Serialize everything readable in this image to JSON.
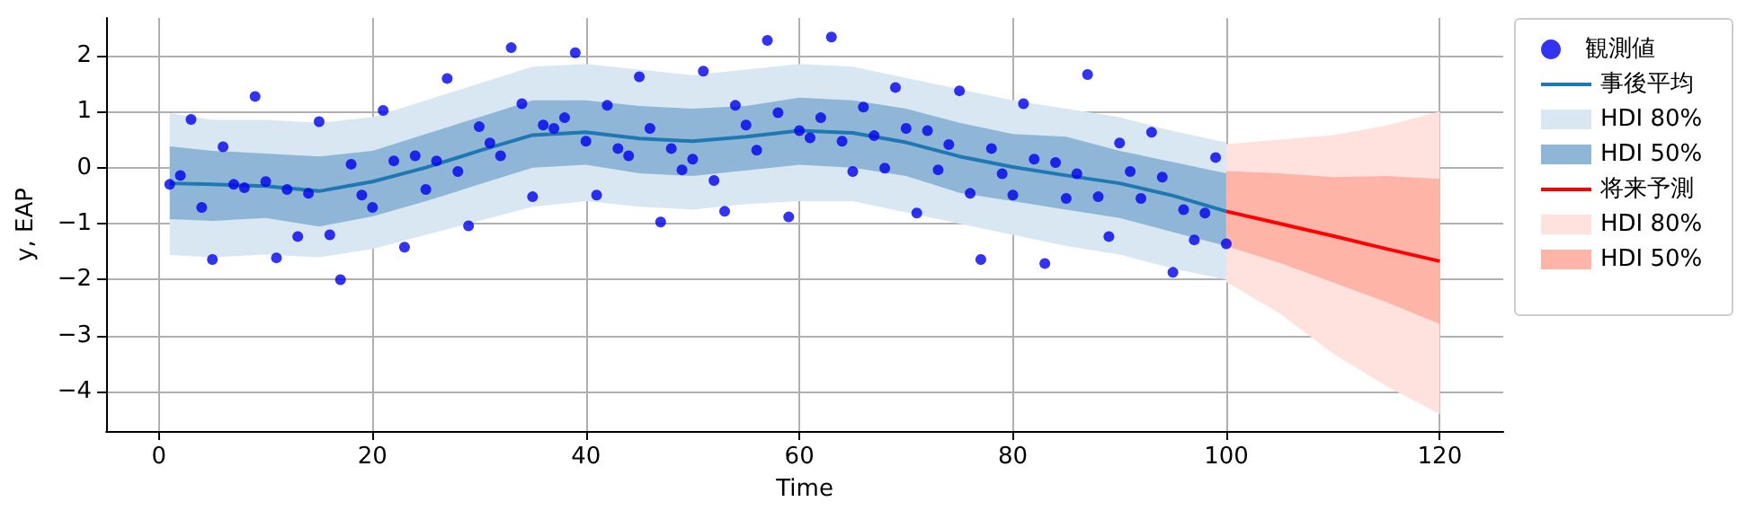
{
  "chart_data": {
    "type": "line",
    "xlabel": "Time",
    "ylabel": "y, EAP",
    "xlim": [
      -4.95,
      125.95
    ],
    "ylim": [
      -4.7,
      2.67
    ],
    "xticks": [
      0,
      20,
      40,
      60,
      80,
      100,
      120
    ],
    "yticks": [
      -4,
      -3,
      -2,
      -1,
      0,
      1,
      2
    ],
    "grid": true,
    "legend": "right",
    "series": [
      {
        "type": "scatter",
        "name": "観測値",
        "color": "#0000ee",
        "marker": "circle",
        "x": [
          1,
          2,
          3,
          4,
          5,
          6,
          7,
          8,
          9,
          10,
          11,
          12,
          13,
          14,
          15,
          16,
          17,
          18,
          19,
          20,
          21,
          22,
          23,
          24,
          25,
          26,
          27,
          28,
          29,
          30,
          31,
          32,
          33,
          34,
          35,
          36,
          37,
          38,
          39,
          40,
          41,
          42,
          43,
          44,
          45,
          46,
          47,
          48,
          49,
          50,
          51,
          52,
          53,
          54,
          55,
          56,
          57,
          58,
          59,
          60,
          61,
          62,
          63,
          64,
          65,
          66,
          67,
          68,
          69,
          70,
          71,
          72,
          73,
          74,
          75,
          76,
          77,
          78,
          79,
          80,
          81,
          82,
          83,
          84,
          85,
          86,
          87,
          88,
          89,
          90,
          91,
          92,
          93,
          94,
          95,
          96,
          97,
          98,
          99,
          100
        ],
        "values": [
          -0.3,
          -0.14,
          0.86,
          -0.71,
          -1.64,
          0.37,
          -0.3,
          -0.36,
          1.27,
          -0.25,
          -1.61,
          -0.39,
          -1.23,
          -0.46,
          0.82,
          -1.2,
          -2.0,
          0.06,
          -0.49,
          -0.71,
          1.02,
          0.12,
          -1.42,
          0.21,
          -0.39,
          0.12,
          1.59,
          -0.07,
          -1.04,
          0.73,
          0.44,
          0.21,
          2.14,
          1.14,
          -0.52,
          0.76,
          0.7,
          0.89,
          2.05,
          0.47,
          -0.49,
          1.11,
          0.34,
          0.21,
          1.62,
          0.7,
          -0.97,
          0.34,
          -0.04,
          0.15,
          1.72,
          -0.23,
          -0.78,
          1.11,
          0.76,
          0.31,
          2.27,
          0.98,
          -0.88,
          0.66,
          0.53,
          0.89,
          2.33,
          0.47,
          -0.07,
          1.08,
          0.57,
          -0.01,
          1.43,
          0.7,
          -0.81,
          0.66,
          -0.04,
          0.41,
          1.37,
          -0.46,
          -1.64,
          0.34,
          -0.11,
          -0.49,
          1.14,
          0.15,
          -1.71,
          0.09,
          -0.55,
          -0.11,
          1.66,
          -0.52,
          -1.23,
          0.44,
          -0.07,
          -0.55,
          0.63,
          -0.17,
          -1.87,
          -0.75,
          -1.29,
          -0.81,
          0.18,
          -1.36
        ]
      },
      {
        "name": "事後平均",
        "color": "#1f77b4",
        "line_style": "solid",
        "x": [
          1,
          5,
          10,
          15,
          20,
          25,
          30,
          35,
          40,
          45,
          50,
          55,
          60,
          65,
          70,
          75,
          80,
          85,
          90,
          95,
          100
        ],
        "values": [
          -0.28,
          -0.3,
          -0.33,
          -0.42,
          -0.25,
          0.0,
          0.3,
          0.58,
          0.63,
          0.52,
          0.47,
          0.55,
          0.66,
          0.62,
          0.45,
          0.2,
          0.01,
          -0.14,
          -0.28,
          -0.5,
          -0.78
        ]
      },
      {
        "name": "HDI 80%",
        "color": "#d9e7f2",
        "x": [
          1,
          5,
          10,
          15,
          20,
          25,
          30,
          35,
          40,
          45,
          50,
          55,
          60,
          65,
          70,
          75,
          80,
          85,
          90,
          95,
          100
        ],
        "values": [
          null,
          null,
          null,
          null,
          null,
          null,
          null,
          null,
          null,
          null,
          null,
          null,
          null,
          null,
          null,
          null,
          null,
          null,
          null,
          null,
          null
        ],
        "lower": [
          -1.56,
          -1.6,
          -1.55,
          -1.6,
          -1.45,
          -1.2,
          -0.95,
          -0.7,
          -0.6,
          -0.7,
          -0.75,
          -0.65,
          -0.6,
          -0.6,
          -0.8,
          -1.0,
          -1.2,
          -1.4,
          -1.55,
          -1.8,
          -2.0
        ],
        "upper": [
          0.97,
          0.85,
          0.85,
          0.8,
          0.9,
          1.2,
          1.5,
          1.8,
          1.85,
          1.75,
          1.65,
          1.75,
          1.85,
          1.8,
          1.6,
          1.4,
          1.2,
          1.05,
          0.9,
          0.65,
          0.45
        ]
      },
      {
        "name": "HDI 50%",
        "color": "#8fb6d6",
        "x": [
          1,
          5,
          10,
          15,
          20,
          25,
          30,
          35,
          40,
          45,
          50,
          55,
          60,
          65,
          70,
          75,
          80,
          85,
          90,
          95,
          100
        ],
        "values": [
          null,
          null,
          null,
          null,
          null,
          null,
          null,
          null,
          null,
          null,
          null,
          null,
          null,
          null,
          null,
          null,
          null,
          null,
          null,
          null,
          null
        ],
        "lower": [
          -0.92,
          -0.95,
          -0.9,
          -1.05,
          -0.87,
          -0.6,
          -0.3,
          0.0,
          0.05,
          -0.1,
          -0.15,
          -0.05,
          0.05,
          0.0,
          -0.15,
          -0.45,
          -0.6,
          -0.75,
          -0.9,
          -1.15,
          -1.4
        ],
        "upper": [
          0.38,
          0.3,
          0.25,
          0.2,
          0.3,
          0.6,
          0.9,
          1.2,
          1.2,
          1.1,
          1.05,
          1.1,
          1.25,
          1.2,
          1.05,
          0.8,
          0.6,
          0.55,
          0.3,
          0.1,
          -0.1
        ]
      },
      {
        "name": "将来予測",
        "color": "#ff0000",
        "line_style": "solid",
        "x": [
          100,
          105,
          110,
          115,
          120
        ],
        "values": [
          -0.78,
          -1.0,
          -1.22,
          -1.45,
          -1.67
        ]
      },
      {
        "name": "HDI 80%",
        "color": "#ffe2de",
        "x": [
          100,
          105,
          110,
          115,
          120
        ],
        "values": [
          null,
          null,
          null,
          null,
          null
        ],
        "lower": [
          -2.04,
          -2.6,
          -3.32,
          -3.9,
          -4.4
        ],
        "upper": [
          0.42,
          0.5,
          0.58,
          0.75,
          1.0
        ]
      },
      {
        "name": "HDI 50%",
        "color": "#ffb4a8",
        "x": [
          100,
          105,
          110,
          115,
          120
        ],
        "values": [
          null,
          null,
          null,
          null,
          null
        ],
        "lower": [
          -1.4,
          -1.7,
          -2.05,
          -2.4,
          -2.79
        ],
        "upper": [
          -0.06,
          -0.1,
          -0.17,
          -0.15,
          -0.2
        ]
      }
    ]
  }
}
